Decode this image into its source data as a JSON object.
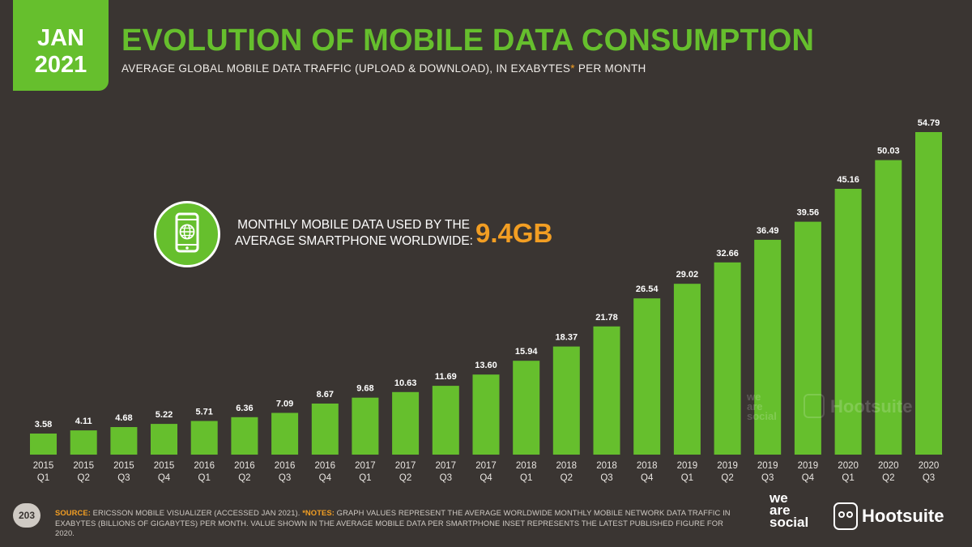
{
  "header": {
    "date_month": "JAN",
    "date_year": "2021",
    "title": "EVOLUTION OF MOBILE DATA CONSUMPTION",
    "subtitle": "AVERAGE GLOBAL MOBILE DATA TRAFFIC (UPLOAD & DOWNLOAD), IN EXABYTES",
    "subtitle_star": "*",
    "subtitle_suffix": "PER MONTH"
  },
  "inset": {
    "icon": "smartphone-globe-icon",
    "label_line1": "MONTHLY MOBILE DATA USED BY THE",
    "label_line2": "AVERAGE SMARTPHONE WORLDWIDE:",
    "value": "9.4GB"
  },
  "chart_data": {
    "type": "bar",
    "title": "",
    "xlabel": "",
    "ylabel": "",
    "ylim": [
      0,
      56
    ],
    "grid": false,
    "categories": [
      [
        "2015",
        "Q1"
      ],
      [
        "2015",
        "Q2"
      ],
      [
        "2015",
        "Q3"
      ],
      [
        "2015",
        "Q4"
      ],
      [
        "2016",
        "Q1"
      ],
      [
        "2016",
        "Q2"
      ],
      [
        "2016",
        "Q3"
      ],
      [
        "2016",
        "Q4"
      ],
      [
        "2017",
        "Q1"
      ],
      [
        "2017",
        "Q2"
      ],
      [
        "2017",
        "Q3"
      ],
      [
        "2017",
        "Q4"
      ],
      [
        "2018",
        "Q1"
      ],
      [
        "2018",
        "Q2"
      ],
      [
        "2018",
        "Q3"
      ],
      [
        "2018",
        "Q4"
      ],
      [
        "2019",
        "Q1"
      ],
      [
        "2019",
        "Q2"
      ],
      [
        "2019",
        "Q3"
      ],
      [
        "2019",
        "Q4"
      ],
      [
        "2020",
        "Q1"
      ],
      [
        "2020",
        "Q2"
      ],
      [
        "2020",
        "Q3"
      ]
    ],
    "values": [
      3.58,
      4.11,
      4.68,
      5.22,
      5.71,
      6.36,
      7.09,
      8.67,
      9.68,
      10.63,
      11.69,
      13.6,
      15.94,
      18.37,
      21.78,
      26.54,
      29.02,
      32.66,
      36.49,
      39.56,
      45.16,
      50.03,
      54.79
    ],
    "value_labels": [
      "3.58",
      "4.11",
      "4.68",
      "5.22",
      "5.71",
      "6.36",
      "7.09",
      "8.67",
      "9.68",
      "10.63",
      "11.69",
      "13.60",
      "15.94",
      "18.37",
      "21.78",
      "26.54",
      "29.02",
      "32.66",
      "36.49",
      "39.56",
      "45.16",
      "50.03",
      "54.79"
    ]
  },
  "colors": {
    "background": "#3a3532",
    "accent_green": "#66bf2d",
    "highlight_orange": "#f29e23",
    "text_light": "#ffffff"
  },
  "watermark": {
    "line1": "we",
    "line2": "are",
    "line3": "social",
    "brand": "Hootsuite"
  },
  "footer": {
    "page_number": "203",
    "source_label": "SOURCE:",
    "source_text": "ERICSSON MOBILE VISUALIZER (ACCESSED JAN 2021).",
    "notes_label": "*NOTES:",
    "notes_text": "GRAPH VALUES REPRESENT THE AVERAGE WORLDWIDE MONTHLY MOBILE NETWORK DATA TRAFFIC IN EXABYTES (BILLIONS OF GIGABYTES) PER MONTH. VALUE SHOWN IN THE AVERAGE MOBILE DATA PER SMARTPHONE INSET REPRESENTS THE LATEST PUBLISHED FIGURE FOR 2020.",
    "brand_was_1": "we",
    "brand_was_2": "are",
    "brand_was_3": "social",
    "brand_hootsuite": "Hootsuite"
  }
}
